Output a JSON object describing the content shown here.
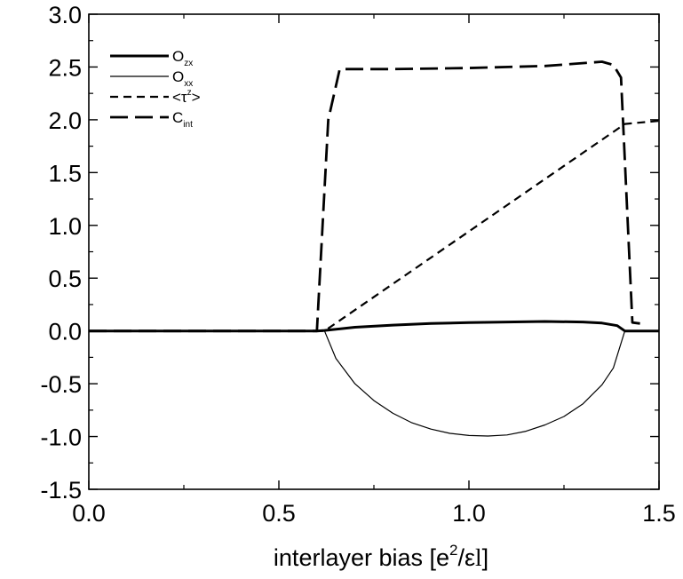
{
  "chart_data": {
    "type": "line",
    "title": "",
    "xlabel": "",
    "ylabel": "",
    "xlim": [
      0.0,
      1.5
    ],
    "ylim": [
      -1.5,
      3.0
    ],
    "x_ticks": [
      "0.0",
      "0.5",
      "1.0",
      "1.5"
    ],
    "y_ticks": [
      "3.0",
      "2.5",
      "2.0",
      "1.5",
      "1.0",
      "0.5",
      "0.0",
      "-0.5",
      "-1.0",
      "-1.5"
    ],
    "grid": false,
    "legend_position": "top-left",
    "series": [
      {
        "name": "O_zx",
        "legend_main": "O",
        "legend_sub": "zx",
        "style": "solid-thick",
        "x": [
          0.0,
          0.6,
          0.62,
          0.7,
          0.8,
          0.9,
          1.0,
          1.1,
          1.2,
          1.3,
          1.35,
          1.39,
          1.41,
          1.45,
          1.5
        ],
        "y": [
          0.0,
          0.0,
          0.005,
          0.035,
          0.055,
          0.07,
          0.08,
          0.085,
          0.09,
          0.085,
          0.075,
          0.05,
          0.0,
          0.0,
          0.0
        ]
      },
      {
        "name": "O_xx",
        "legend_main": "O",
        "legend_sub": "xx",
        "style": "solid-thin",
        "x": [
          0.0,
          0.6,
          0.62,
          0.65,
          0.7,
          0.75,
          0.8,
          0.85,
          0.9,
          0.95,
          1.0,
          1.05,
          1.1,
          1.15,
          1.2,
          1.25,
          1.3,
          1.35,
          1.38,
          1.41,
          1.45,
          1.5
        ],
        "y": [
          0.0,
          0.0,
          0.0,
          -0.26,
          -0.5,
          -0.66,
          -0.78,
          -0.87,
          -0.93,
          -0.97,
          -0.99,
          -0.995,
          -0.985,
          -0.95,
          -0.89,
          -0.81,
          -0.69,
          -0.51,
          -0.35,
          0.0,
          0.0,
          0.0
        ]
      },
      {
        "name": "<τ^z>",
        "legend_main": "<τ",
        "legend_sub": "z",
        "legend_tail": ">",
        "style": "dashed-short",
        "x": [
          0.0,
          0.62,
          1.41,
          1.5
        ],
        "y": [
          0.0,
          0.0,
          1.96,
          1.99
        ]
      },
      {
        "name": "C_int",
        "legend_main": "C",
        "legend_sub": "int",
        "style": "dashed-long",
        "x": [
          0.0,
          0.6,
          0.63,
          0.66,
          0.8,
          1.0,
          1.2,
          1.35,
          1.38,
          1.4,
          1.43,
          1.45
        ],
        "y": [
          0.0,
          0.0,
          2.0,
          2.48,
          2.48,
          2.49,
          2.51,
          2.55,
          2.52,
          2.4,
          0.08,
          0.07
        ]
      }
    ]
  },
  "labels": {
    "x_axis_title_prefix": "interlayer bias [e",
    "x_axis_title_sup": "2",
    "x_axis_title_mid": "/ε",
    "x_axis_title_l": "l",
    "x_axis_title_suffix": "]"
  }
}
